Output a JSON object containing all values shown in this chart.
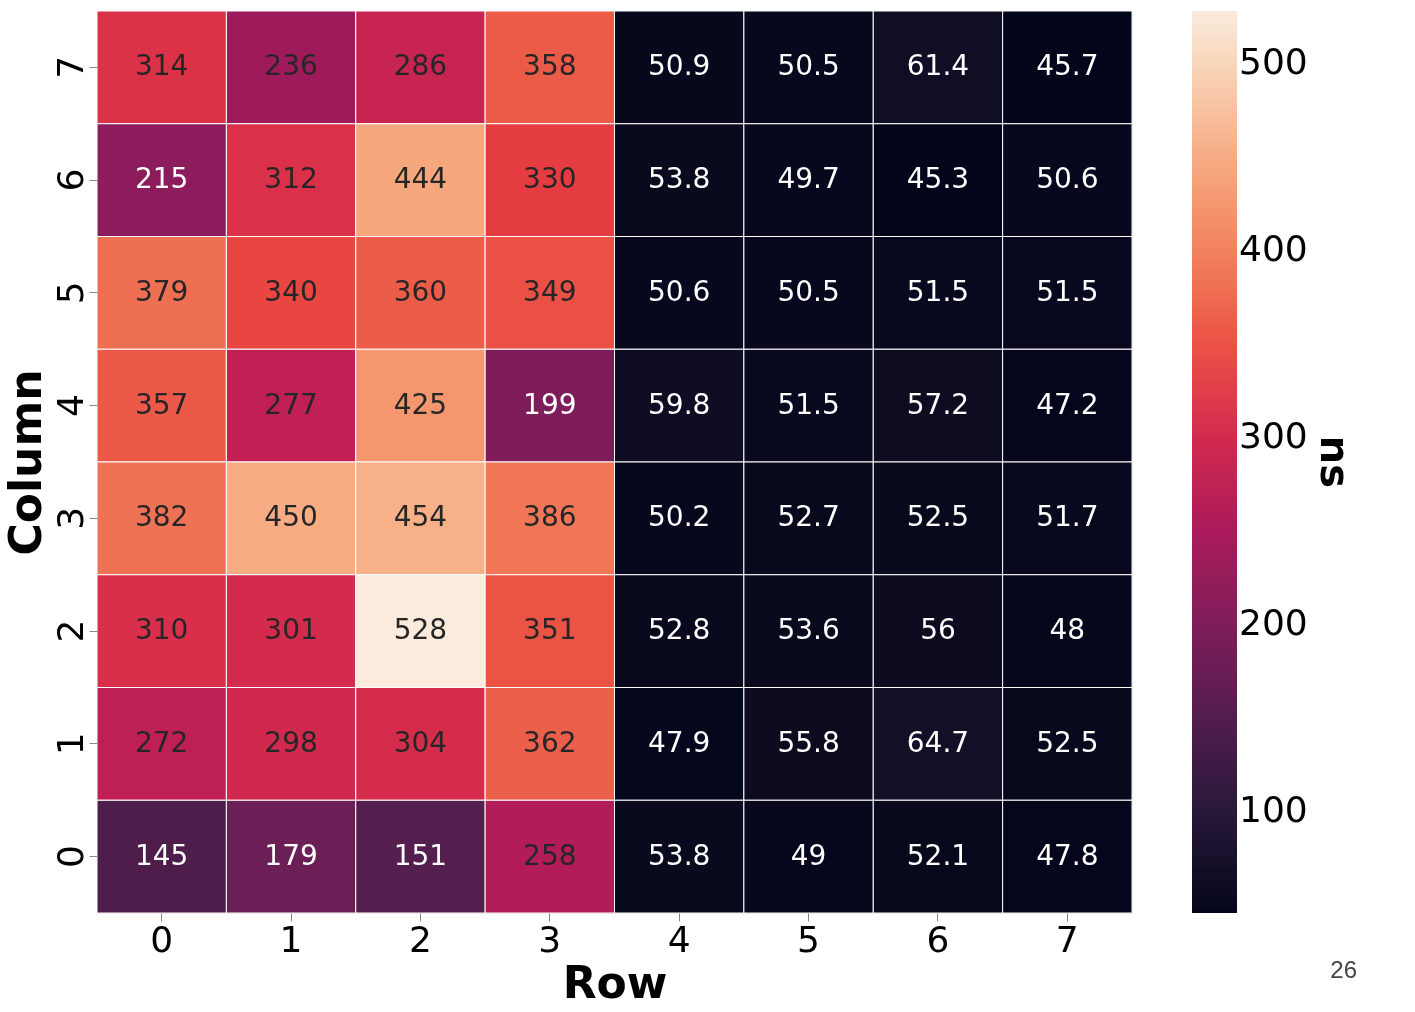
{
  "chart_data": {
    "type": "heatmap",
    "xlabel": "Row",
    "ylabel": "Column",
    "clabel": "ns",
    "categories": [
      "0",
      "1",
      "2",
      "3",
      "4",
      "5",
      "6",
      "7"
    ],
    "y_categories": [
      "7",
      "6",
      "5",
      "4",
      "3",
      "2",
      "1",
      "0"
    ],
    "cells": [
      [
        314,
        236,
        286,
        358,
        50.9,
        50.5,
        61.4,
        45.7
      ],
      [
        215,
        312,
        444,
        330,
        53.8,
        49.7,
        45.3,
        50.6
      ],
      [
        379,
        340,
        360,
        349,
        50.6,
        50.5,
        51.5,
        51.5
      ],
      [
        357,
        277,
        425,
        199,
        59.8,
        51.5,
        57.2,
        47.2
      ],
      [
        382,
        450,
        454,
        386,
        50.2,
        52.7,
        52.5,
        51.7
      ],
      [
        310,
        301,
        528,
        351,
        52.8,
        53.6,
        56,
        48
      ],
      [
        272,
        298,
        304,
        362,
        47.9,
        55.8,
        64.7,
        52.5
      ],
      [
        145,
        179,
        151,
        258,
        53.8,
        49,
        52.1,
        47.8
      ]
    ],
    "data_labels": true,
    "clim": [
      45.3,
      528
    ],
    "cticks": [
      100,
      200,
      300,
      400,
      500
    ],
    "annotations": [
      "26"
    ]
  }
}
